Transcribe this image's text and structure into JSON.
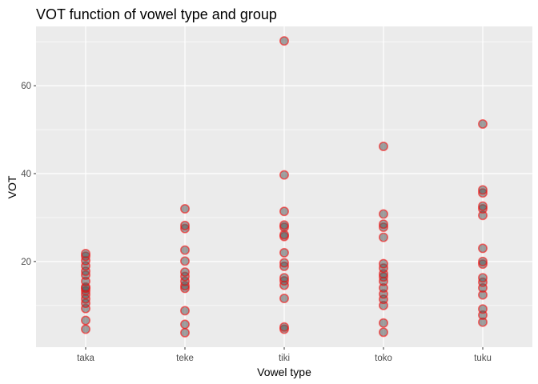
{
  "chart_data": {
    "type": "scatter",
    "title": "VOT  function of vowel type and group",
    "xlabel": "Vowel type",
    "ylabel": "VOT",
    "categories": [
      "taka",
      "teke",
      "tiki",
      "toko",
      "tuku"
    ],
    "yticks": [
      20,
      40,
      60
    ],
    "ylim": [
      0.5,
      73.5
    ],
    "grid": true,
    "panel_background": "#EBEBEB",
    "grid_color": "#FFFFFF",
    "point_fill": "#595959",
    "point_stroke": "#FF0000",
    "series": [
      {
        "category": "taka",
        "values": [
          4.6,
          6.6,
          9.3,
          10.5,
          11.5,
          12.5,
          13.3,
          13.9,
          14.2,
          15.5,
          16.9,
          17.8,
          19.0,
          20.2,
          21.2,
          21.8
        ]
      },
      {
        "category": "teke",
        "values": [
          3.8,
          5.7,
          8.8,
          13.9,
          14.5,
          15.5,
          16.6,
          17.6,
          20.1,
          22.6,
          27.5,
          28.2,
          32.0
        ]
      },
      {
        "category": "tiki",
        "values": [
          4.6,
          5.1,
          11.6,
          14.6,
          15.6,
          16.3,
          18.9,
          19.7,
          22.0,
          25.7,
          26.1,
          27.8,
          28.3,
          31.4,
          39.7,
          70.2
        ]
      },
      {
        "category": "toko",
        "values": [
          3.9,
          6.0,
          10.0,
          11.4,
          12.6,
          14.0,
          15.5,
          16.5,
          17.2,
          18.5,
          19.5,
          25.5,
          27.8,
          28.5,
          30.8,
          46.2
        ]
      },
      {
        "category": "tuku",
        "values": [
          6.2,
          7.8,
          9.2,
          12.4,
          14.0,
          15.3,
          16.3,
          19.4,
          20.0,
          23.0,
          30.5,
          32.0,
          32.6,
          35.6,
          36.3,
          51.3
        ]
      }
    ]
  }
}
